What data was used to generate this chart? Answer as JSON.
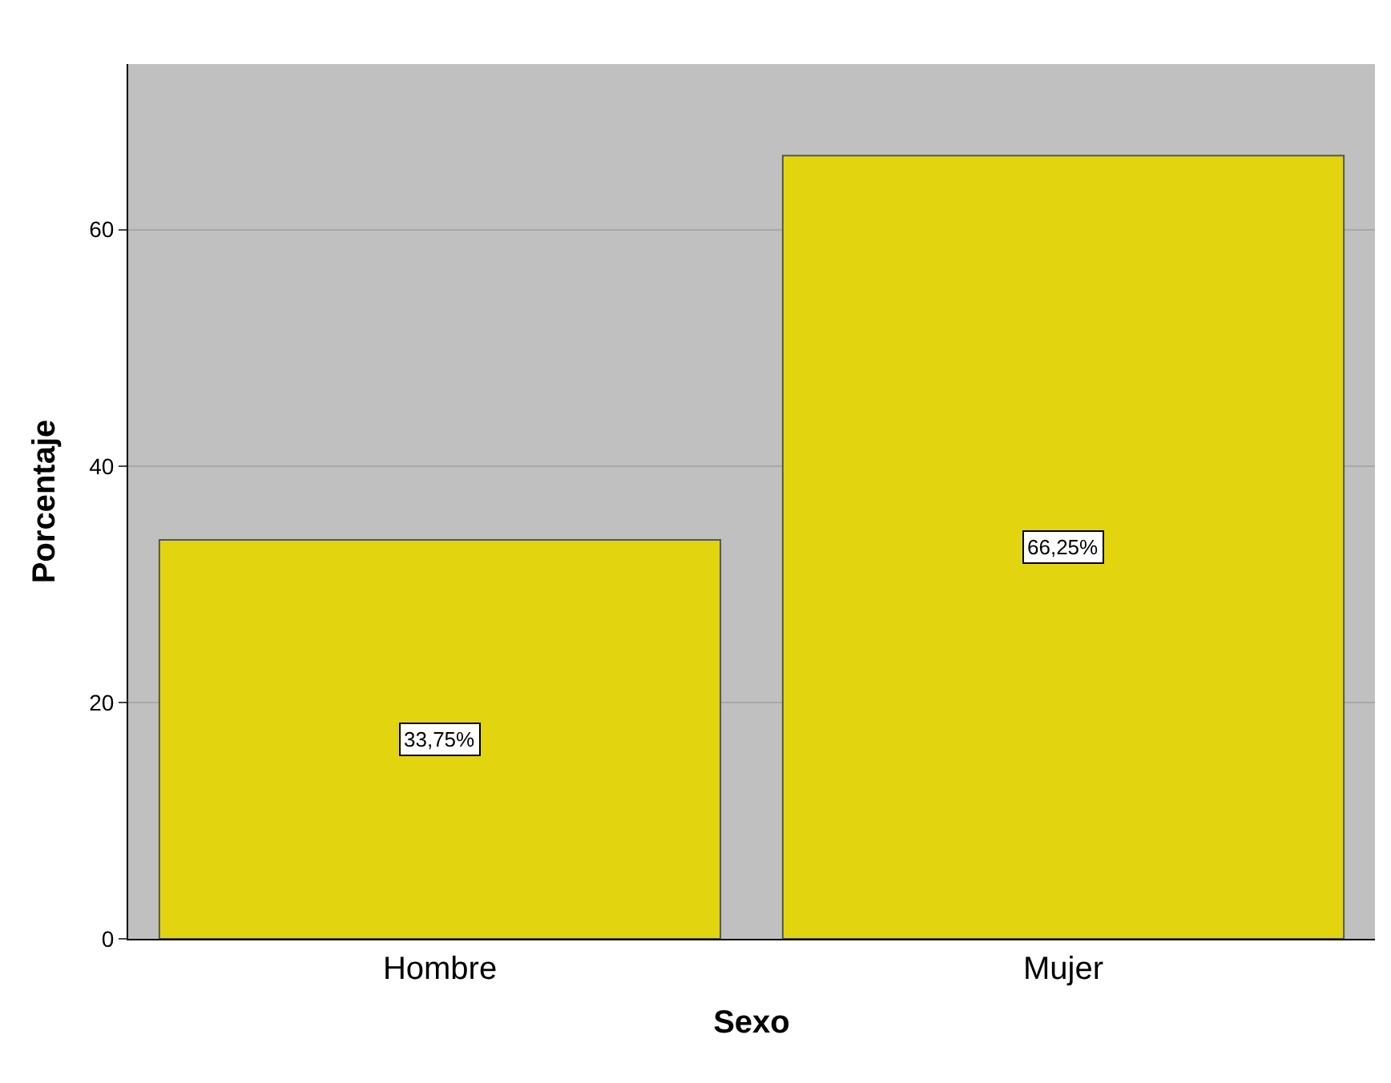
{
  "chart_data": {
    "type": "bar",
    "xlabel": "Sexo",
    "ylabel": "Porcentaje",
    "categories": [
      "Hombre",
      "Mujer"
    ],
    "values": [
      33.75,
      66.25
    ],
    "value_labels": [
      "33,75%",
      "66,25%"
    ],
    "color": "#e2d510",
    "ylim": [
      0,
      74
    ],
    "yticks": [
      0,
      20,
      40,
      60
    ],
    "grid": "y"
  }
}
